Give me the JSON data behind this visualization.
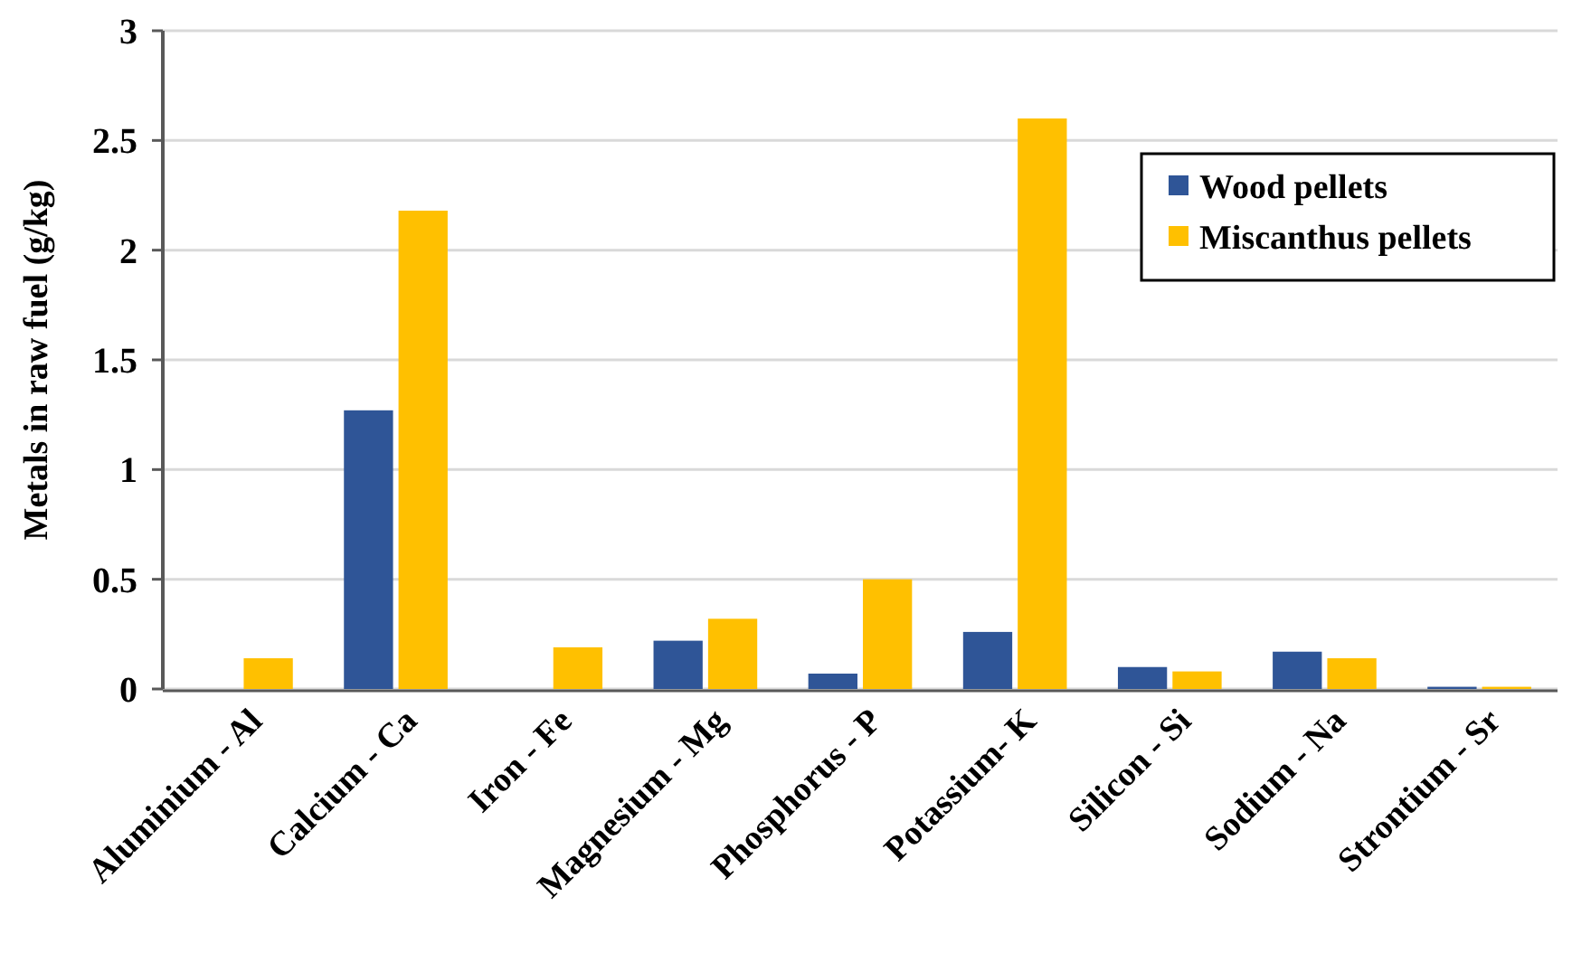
{
  "chart_data": {
    "type": "bar",
    "ylabel": "Metals in raw fuel (g/kg)",
    "categories": [
      "Aluminium - Al",
      "Calcium - Ca",
      "Iron - Fe",
      "Magnesium - Mg",
      "Phosphorus - P",
      "Potassium- K",
      "Silicon - Si",
      "Sodium - Na",
      "Strontium - Sr"
    ],
    "series": [
      {
        "name": "Wood pellets",
        "color": "#2f5597",
        "values": [
          0,
          1.27,
          0,
          0.22,
          0.07,
          0.26,
          0.1,
          0.17,
          0.01
        ]
      },
      {
        "name": "Miscanthus pellets",
        "color": "#ffc000",
        "values": [
          0.14,
          2.18,
          0.19,
          0.32,
          0.5,
          2.6,
          0.08,
          0.14,
          0.01
        ]
      }
    ],
    "ylim": [
      0,
      3
    ],
    "yticks": [
      0,
      0.5,
      1,
      1.5,
      2,
      2.5,
      3
    ],
    "grid": "y",
    "legend": "top right"
  }
}
